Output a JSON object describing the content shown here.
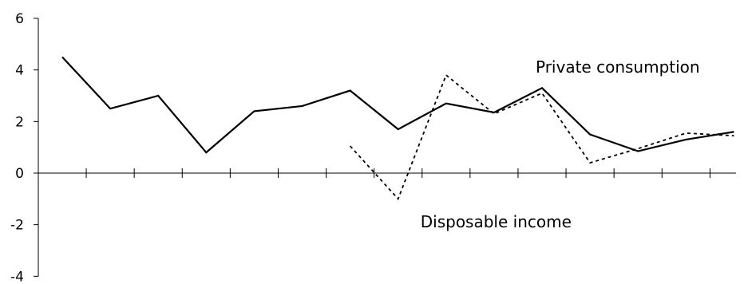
{
  "chart_data": {
    "type": "line",
    "x": [
      1,
      2,
      3,
      4,
      5,
      6,
      7,
      8,
      9,
      10,
      11,
      12,
      13,
      14,
      15
    ],
    "ylim": [
      -4,
      6
    ],
    "yticks": [
      6,
      4,
      2,
      0,
      -2,
      -4
    ],
    "ytick_labels": [
      "6",
      "4",
      "2",
      "0",
      "-2",
      "-4"
    ],
    "grid": false,
    "series": [
      {
        "name": "Private consumption",
        "style": "solid",
        "color": "#000000",
        "points": [
          [
            1,
            4.5
          ],
          [
            2,
            2.5
          ],
          [
            3,
            3.0
          ],
          [
            4,
            0.8
          ],
          [
            5,
            2.4
          ],
          [
            6,
            2.6
          ],
          [
            7,
            3.2
          ],
          [
            8,
            1.7
          ],
          [
            9,
            2.7
          ],
          [
            10,
            2.35
          ],
          [
            11,
            3.3
          ],
          [
            12,
            1.5
          ],
          [
            13,
            0.85
          ],
          [
            14,
            1.3
          ],
          [
            15,
            1.6
          ]
        ]
      },
      {
        "name": "Disposable income",
        "style": "dashed",
        "color": "#000000",
        "points": [
          [
            7,
            1.05
          ],
          [
            8,
            -1.0
          ],
          [
            9,
            3.8
          ],
          [
            10,
            2.3
          ],
          [
            11,
            3.1
          ],
          [
            12,
            0.4
          ],
          [
            13,
            0.95
          ],
          [
            14,
            1.55
          ],
          [
            15,
            1.45
          ]
        ]
      }
    ],
    "annotations": [
      {
        "text": "Private consumption",
        "at": [
          11,
          3.9
        ]
      },
      {
        "text": "Disposable income",
        "at": [
          8.5,
          -2.1
        ]
      }
    ]
  }
}
